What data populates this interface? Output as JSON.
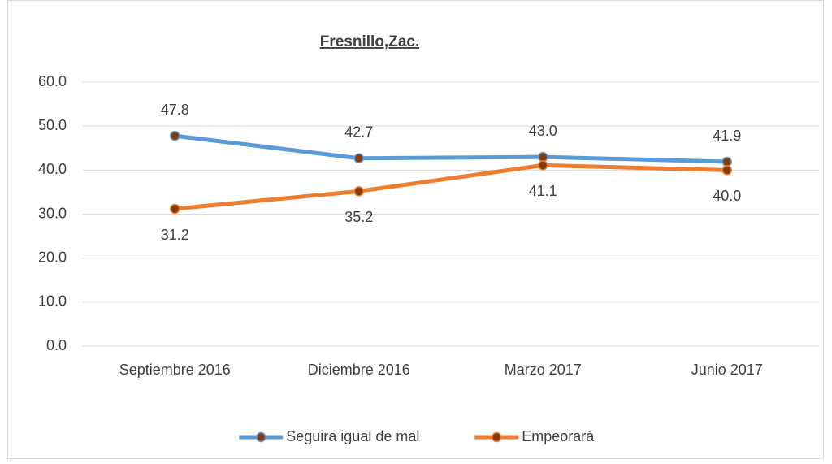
{
  "chart_data": {
    "type": "line",
    "title": "Fresnillo,Zac.",
    "categories": [
      "Septiembre 2016",
      "Diciembre 2016",
      "Marzo 2017",
      "Junio 2017"
    ],
    "series": [
      {
        "name": "Seguira igual de mal",
        "color": "#5b9bd5",
        "values": [
          47.8,
          42.7,
          43.0,
          41.9
        ],
        "value_labels": [
          "47.8",
          "42.7",
          "43.0",
          "41.9"
        ]
      },
      {
        "name": "Empeorará",
        "color": "#ed7d31",
        "values": [
          31.2,
          35.2,
          41.1,
          40.0
        ],
        "value_labels": [
          "31.2",
          "35.2",
          "41.1",
          "40.0"
        ]
      }
    ],
    "marker_color": "#843c0c",
    "ylim": [
      0,
      60
    ],
    "yticks": [
      {
        "value": 0,
        "label": "0.0"
      },
      {
        "value": 10,
        "label": "10.0"
      },
      {
        "value": 20,
        "label": "20.0"
      },
      {
        "value": 30,
        "label": "30.0"
      },
      {
        "value": 40,
        "label": "40.0"
      },
      {
        "value": 50,
        "label": "50.0"
      },
      {
        "value": 60,
        "label": "60.0"
      }
    ],
    "grid": true,
    "legend": "bottom"
  }
}
